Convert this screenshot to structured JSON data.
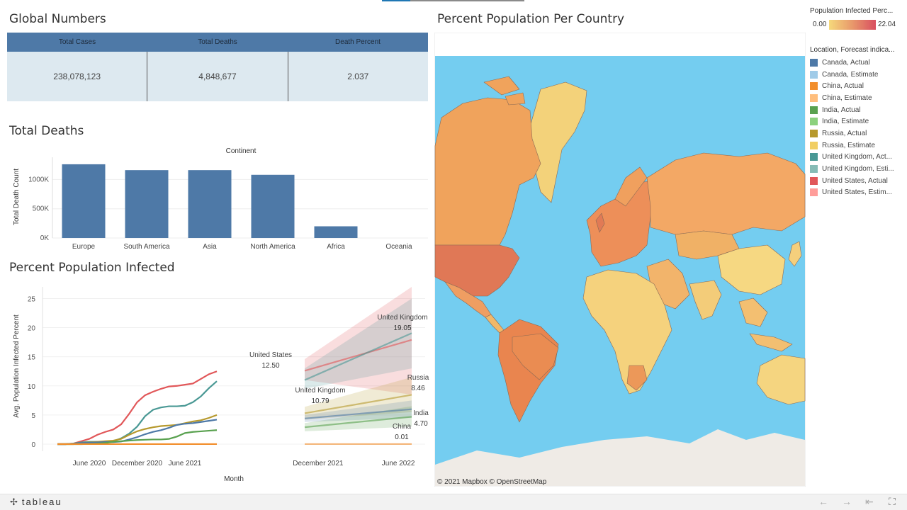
{
  "global_numbers": {
    "title": "Global Numbers",
    "headers": [
      "Total Cases",
      "Total Deaths",
      "Death Percent"
    ],
    "values": [
      "238,078,123",
      "4,848,677",
      "2.037"
    ]
  },
  "total_deaths": {
    "title": "Total Deaths",
    "chart_data": {
      "type": "bar",
      "title": "Continent",
      "xlabel": "",
      "ylabel": "Total Death Count",
      "categories": [
        "Europe",
        "South America",
        "Asia",
        "North America",
        "Africa",
        "Oceania"
      ],
      "values": [
        1260000,
        1160000,
        1160000,
        1080000,
        200000,
        0
      ],
      "ylim": [
        0,
        1380000
      ],
      "yticks": [
        0,
        500000,
        1000000
      ],
      "ytick_labels": [
        "0K",
        "500K",
        "1000K"
      ],
      "color": "#4e79a7"
    }
  },
  "infected": {
    "title": "Percent Population Infected",
    "chart_data": {
      "type": "line",
      "xlabel": "Month",
      "ylabel": "Avg. Population Infected Percent",
      "x_actual": [
        "2020-02",
        "2020-03",
        "2020-04",
        "2020-05",
        "2020-06",
        "2020-07",
        "2020-08",
        "2020-09",
        "2020-10",
        "2020-11",
        "2020-12",
        "2021-01",
        "2021-02",
        "2021-03",
        "2021-04",
        "2021-05",
        "2021-06",
        "2021-07",
        "2021-08",
        "2021-09",
        "2021-10"
      ],
      "x_forecast": [
        "2021-11",
        "2022-07"
      ],
      "ylim": [
        0,
        27
      ],
      "yticks": [
        0,
        5,
        10,
        15,
        20,
        25
      ],
      "xticks": [
        "June 2020",
        "December 2020",
        "June 2021",
        "December 2021",
        "June 2022"
      ],
      "series": [
        {
          "name": "United States",
          "color": "#e15759",
          "actual": [
            0,
            0,
            0.1,
            0.5,
            0.9,
            1.6,
            2.1,
            2.5,
            3.4,
            5.2,
            7.2,
            8.4,
            9.0,
            9.5,
            9.9,
            10.0,
            10.2,
            10.4,
            11.2,
            12.0,
            12.5
          ],
          "forecast": [
            12.6,
            17.9
          ],
          "band": [
            [
              11.0,
              14.6
            ],
            [
              8.5,
              27.0
            ]
          ],
          "label": "United States",
          "value_label": "12.50"
        },
        {
          "name": "United Kingdom",
          "color": "#499894",
          "actual": [
            0,
            0,
            0.1,
            0.3,
            0.4,
            0.4,
            0.4,
            0.5,
            1.0,
            1.8,
            3.0,
            4.8,
            5.9,
            6.3,
            6.5,
            6.5,
            6.6,
            7.2,
            8.2,
            9.6,
            10.8
          ],
          "forecast": [
            11.0,
            19.05
          ],
          "band": [
            [
              9.5,
              13.0
            ],
            [
              13.0,
              25.0
            ]
          ],
          "label": "United Kingdom",
          "value_label": "19.05",
          "label2": "United Kingdom",
          "value_label2": "10.79"
        },
        {
          "name": "Russia",
          "color": "#b6992d",
          "actual": [
            0,
            0,
            0,
            0.2,
            0.3,
            0.4,
            0.5,
            0.6,
            0.9,
            1.6,
            2.2,
            2.6,
            2.9,
            3.1,
            3.2,
            3.3,
            3.6,
            3.9,
            4.1,
            4.5,
            5.0
          ],
          "forecast": [
            5.3,
            8.46
          ],
          "band": [
            [
              4.2,
              6.4
            ],
            [
              5.5,
              11.5
            ]
          ],
          "label": "Russia",
          "value_label": "8.46"
        },
        {
          "name": "Canada",
          "color": "#4e79a7",
          "actual": [
            0,
            0,
            0.05,
            0.2,
            0.25,
            0.3,
            0.35,
            0.35,
            0.45,
            0.8,
            1.2,
            1.7,
            2.1,
            2.4,
            2.8,
            3.3,
            3.5,
            3.6,
            3.8,
            4.0,
            4.2
          ],
          "forecast": [
            4.4,
            6.0
          ],
          "band": [
            [
              3.8,
              5.0
            ],
            [
              4.5,
              7.5
            ]
          ],
          "label": "",
          "value_label": ""
        },
        {
          "name": "India",
          "color": "#59a14f",
          "actual": [
            0,
            0,
            0,
            0,
            0.05,
            0.1,
            0.2,
            0.4,
            0.5,
            0.6,
            0.7,
            0.75,
            0.8,
            0.8,
            0.9,
            1.3,
            1.9,
            2.1,
            2.2,
            2.3,
            2.4
          ],
          "forecast": [
            2.9,
            4.7
          ],
          "band": [
            [
              2.2,
              3.6
            ],
            [
              3.0,
              6.5
            ]
          ],
          "label": "India",
          "value_label": "4.70"
        },
        {
          "name": "China",
          "color": "#f28e2b",
          "actual": [
            0.01,
            0.01,
            0.01,
            0.01,
            0.01,
            0.01,
            0.01,
            0.01,
            0.01,
            0.01,
            0.01,
            0.01,
            0.01,
            0.01,
            0.01,
            0.01,
            0.01,
            0.01,
            0.01,
            0.01,
            0.01
          ],
          "forecast": [
            0.01,
            0.01
          ],
          "band": [
            [
              0,
              0.05
            ],
            [
              0,
              0.1
            ]
          ],
          "label": "China",
          "value_label": "0.01"
        }
      ]
    }
  },
  "map": {
    "title": "Percent Population Per Country",
    "attribution": "© 2021 Mapbox  © OpenStreetMap",
    "ocean_color": "#74cdf0"
  },
  "legend": {
    "gradient_title": "Population Infected Perc...",
    "gradient_min": "0.00",
    "gradient_max": "22.04",
    "category_title": "Location, Forecast indica...",
    "items": [
      {
        "label": "Canada, Actual",
        "color": "#4e79a7"
      },
      {
        "label": "Canada, Estimate",
        "color": "#a0cbe8"
      },
      {
        "label": "China, Actual",
        "color": "#f28e2b"
      },
      {
        "label": "China, Estimate",
        "color": "#ffbe7d"
      },
      {
        "label": "India, Actual",
        "color": "#59a14f"
      },
      {
        "label": "India, Estimate",
        "color": "#8cd17d"
      },
      {
        "label": "Russia, Actual",
        "color": "#b6992d"
      },
      {
        "label": "Russia, Estimate",
        "color": "#f1ce63"
      },
      {
        "label": "United Kingdom, Act...",
        "color": "#499894"
      },
      {
        "label": "United Kingdom, Esti...",
        "color": "#86bcb6"
      },
      {
        "label": "United States, Actual",
        "color": "#e15759"
      },
      {
        "label": "United States, Estim...",
        "color": "#ff9d9a"
      }
    ]
  },
  "toolbar": {
    "logo": "tableau",
    "undo_icon": "undo-icon",
    "redo_icon": "redo-icon",
    "revert_icon": "revert-icon",
    "fullscreen_icon": "fullscreen-icon"
  }
}
